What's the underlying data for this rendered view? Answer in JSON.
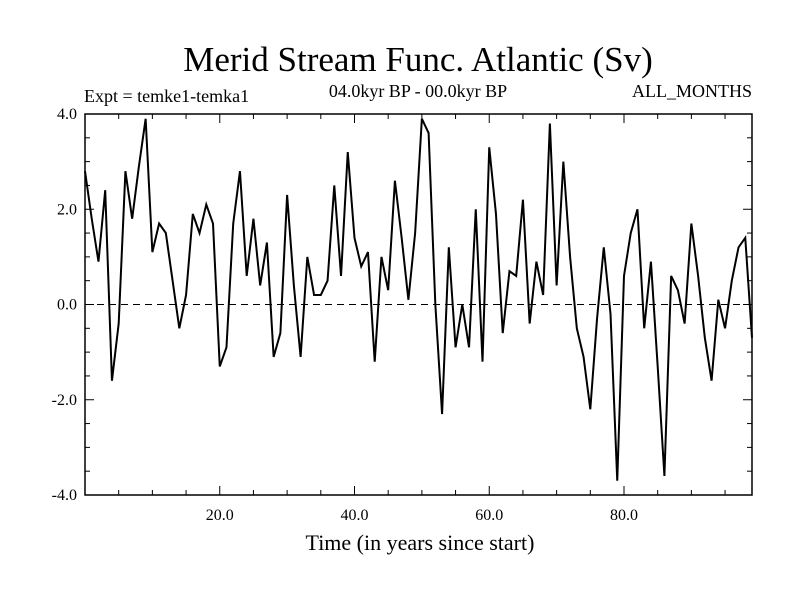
{
  "chart_data": {
    "type": "line",
    "title": "Merid Stream Func. Atlantic (Sv)",
    "subtitle_left": "Expt = temke1-temka1",
    "subtitle_center": "04.0kyr BP - 00.0kyr BP",
    "subtitle_right": "ALL_MONTHS",
    "xlabel": "Time (in years since start)",
    "ylabel": "",
    "xlim": [
      0,
      99
    ],
    "ylim": [
      -4.0,
      4.0
    ],
    "x_ticks": [
      {
        "value": 20,
        "label": "20.0"
      },
      {
        "value": 40,
        "label": "40.0"
      },
      {
        "value": 60,
        "label": "60.0"
      },
      {
        "value": 80,
        "label": "80.0"
      }
    ],
    "y_ticks": [
      {
        "value": 4,
        "label": "4.0"
      },
      {
        "value": 2,
        "label": "2.0"
      },
      {
        "value": 0,
        "label": "0.0"
      },
      {
        "value": -2,
        "label": "-2.0"
      },
      {
        "value": -4,
        "label": "-4.0"
      }
    ],
    "zero_line": true,
    "series": [
      {
        "name": "Merid Stream Func. Atlantic",
        "x": [
          0,
          1,
          2,
          3,
          4,
          5,
          6,
          7,
          8,
          9,
          10,
          11,
          12,
          13,
          14,
          15,
          16,
          17,
          18,
          19,
          20,
          21,
          22,
          23,
          24,
          25,
          26,
          27,
          28,
          29,
          30,
          31,
          32,
          33,
          34,
          35,
          36,
          37,
          38,
          39,
          40,
          41,
          42,
          43,
          44,
          45,
          46,
          47,
          48,
          49,
          50,
          51,
          52,
          53,
          54,
          55,
          56,
          57,
          58,
          59,
          60,
          61,
          62,
          63,
          64,
          65,
          66,
          67,
          68,
          69,
          70,
          71,
          72,
          73,
          74,
          75,
          76,
          77,
          78,
          79,
          80,
          81,
          82,
          83,
          84,
          85,
          86,
          87,
          88,
          89,
          90,
          91,
          92,
          93,
          94,
          95,
          96,
          97,
          98,
          99
        ],
        "values": [
          2.8,
          1.8,
          0.9,
          2.4,
          -1.6,
          -0.4,
          2.8,
          1.8,
          2.9,
          3.9,
          1.1,
          1.7,
          1.5,
          0.5,
          -0.5,
          0.2,
          1.9,
          1.5,
          2.1,
          1.7,
          -1.3,
          -0.9,
          1.7,
          2.8,
          0.6,
          1.8,
          0.4,
          1.3,
          -1.1,
          -0.6,
          2.3,
          0.4,
          -1.1,
          1.0,
          0.2,
          0.2,
          0.5,
          2.5,
          0.6,
          3.2,
          1.4,
          0.8,
          1.1,
          -1.2,
          1.0,
          0.3,
          2.6,
          1.4,
          0.1,
          1.5,
          3.9,
          3.6,
          0.0,
          -2.3,
          1.2,
          -0.9,
          0.0,
          -0.9,
          2.0,
          -1.2,
          3.3,
          1.9,
          -0.6,
          0.7,
          0.6,
          2.2,
          -0.4,
          0.9,
          0.2,
          3.8,
          0.4,
          3.0,
          1.0,
          -0.5,
          -1.1,
          -2.2,
          -0.3,
          1.2,
          -0.2,
          -3.7,
          0.6,
          1.5,
          2.0,
          -0.5,
          0.9,
          -1.3,
          -3.6,
          0.6,
          0.3,
          -0.4,
          1.7,
          0.6,
          -0.7,
          -1.6,
          0.1,
          -0.5,
          0.5,
          1.2,
          1.4,
          -0.7
        ]
      }
    ]
  }
}
